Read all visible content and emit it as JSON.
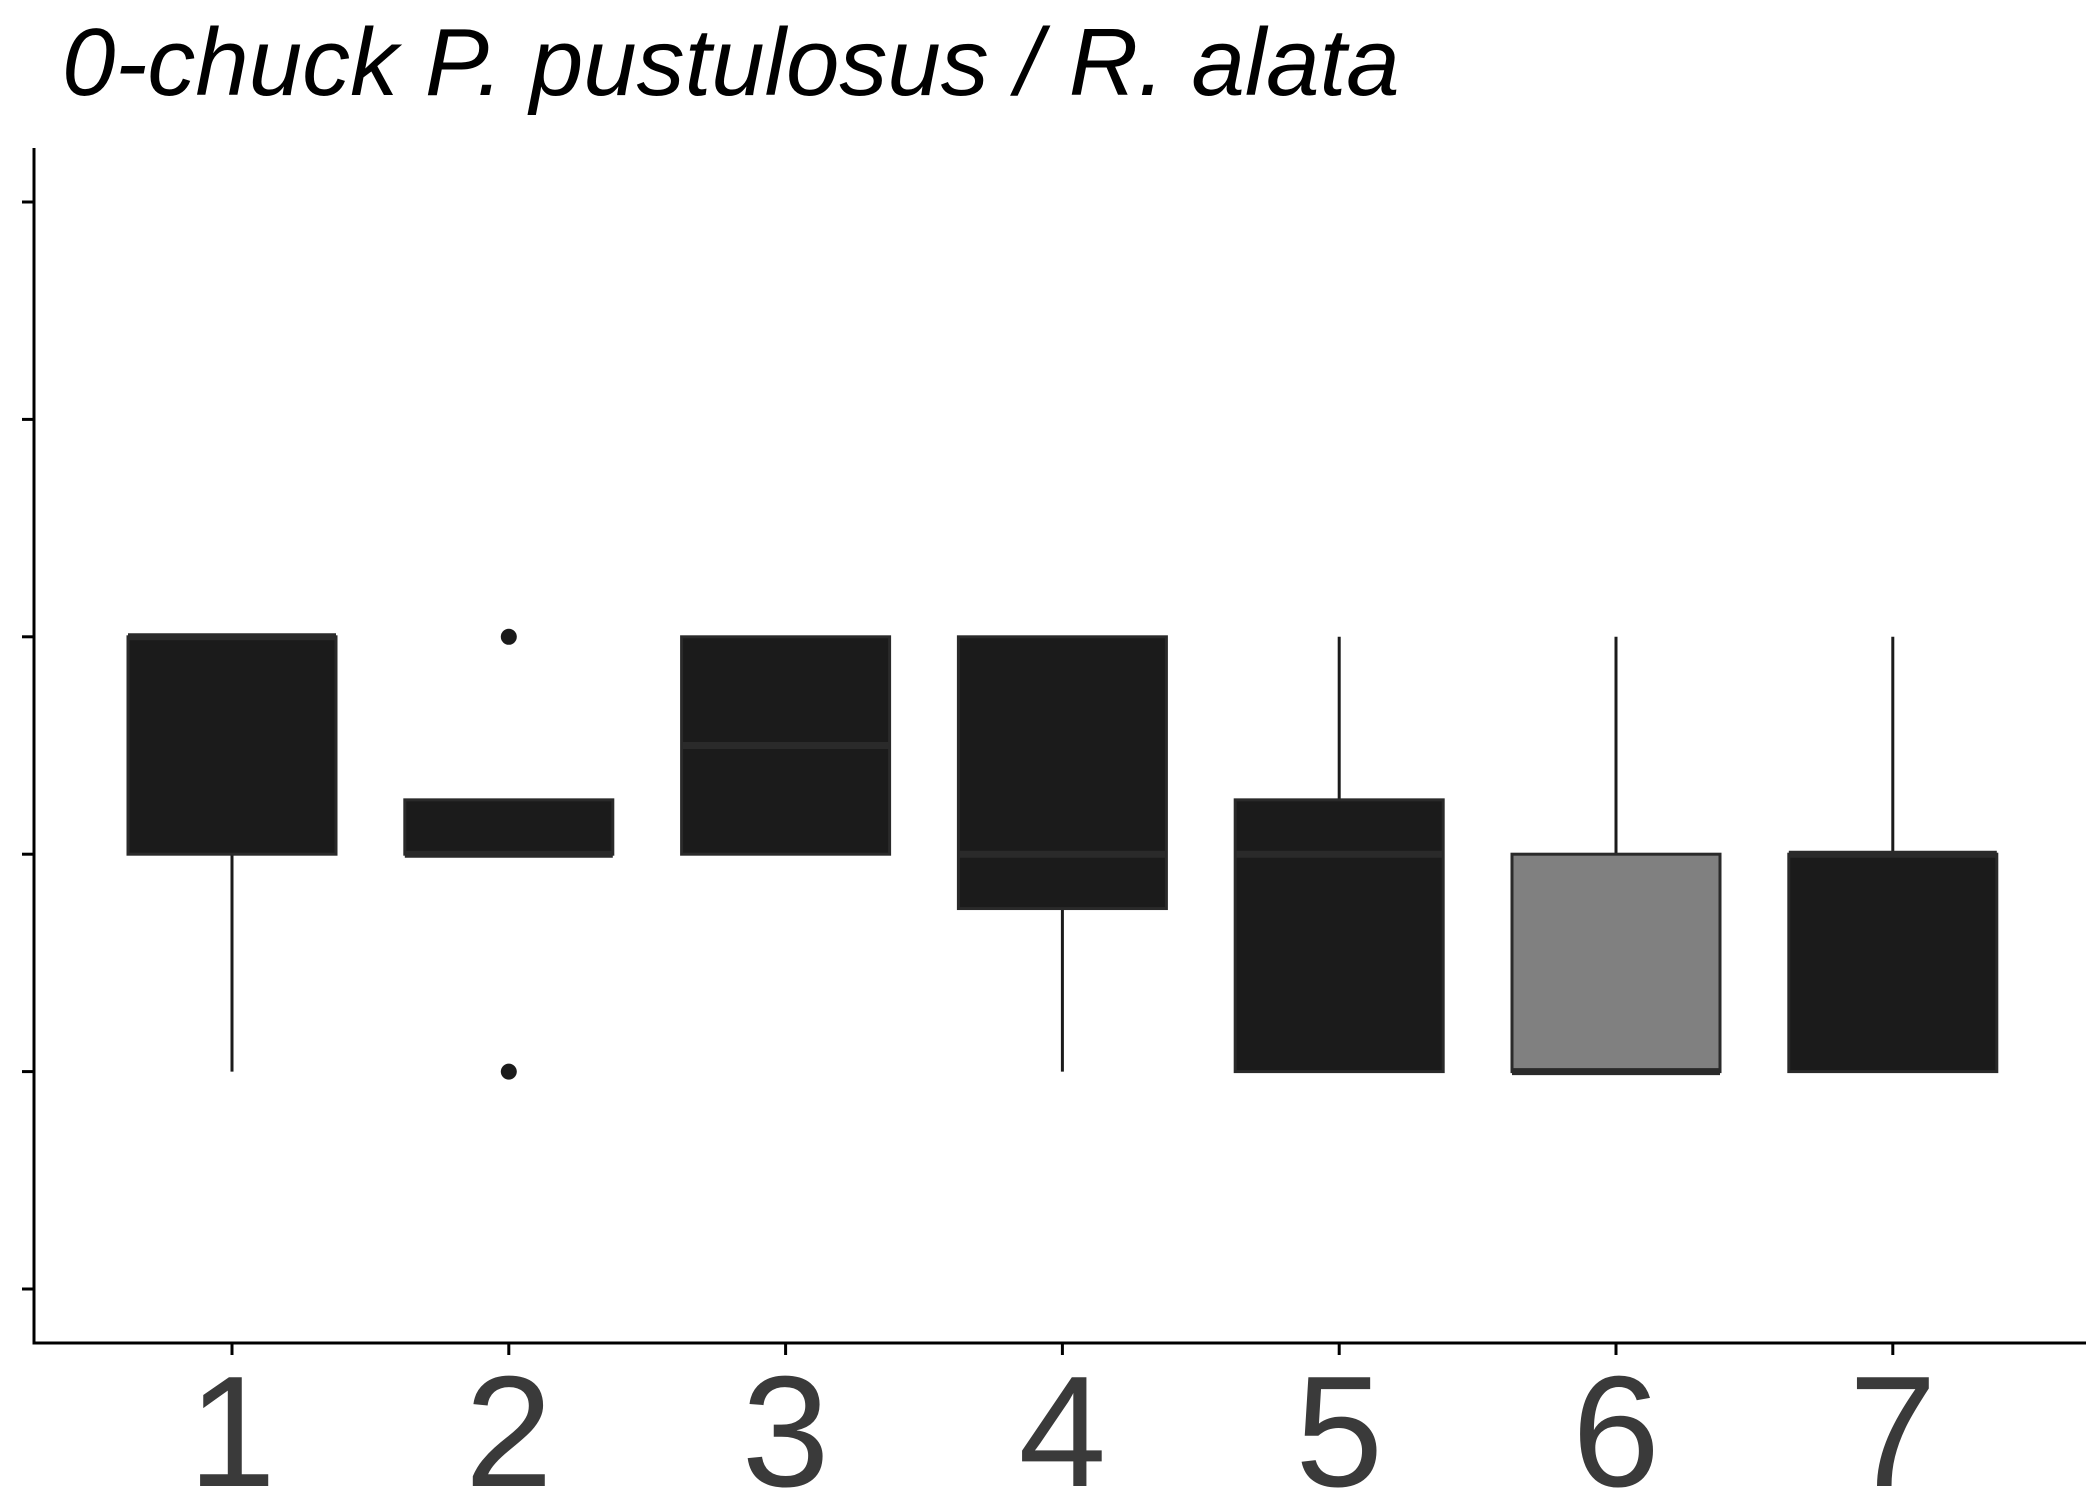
{
  "chart_data": {
    "type": "box",
    "title": "0-chuck P. pustulosus / R. alata",
    "xlabel": "",
    "ylabel": "",
    "categories": [
      "1",
      "2",
      "3",
      "4",
      "5",
      "6",
      "7"
    ],
    "ylim": [
      -0.25,
      5.25
    ],
    "y_ticks": [
      0,
      1,
      2,
      3,
      4,
      5
    ],
    "y_tick_labels_visible": false,
    "grid": false,
    "boxes": [
      {
        "category": "1",
        "whisker_low": 1,
        "q1": 2,
        "median": 3,
        "q3": 3,
        "whisker_high": 3,
        "outliers": [],
        "fill": "#1b1b1b"
      },
      {
        "category": "2",
        "whisker_low": 2,
        "q1": 2,
        "median": 2,
        "q3": 2.25,
        "whisker_high": 2.25,
        "outliers": [
          1,
          3
        ],
        "fill": "#1b1b1b"
      },
      {
        "category": "3",
        "whisker_low": 2,
        "q1": 2,
        "median": 2.5,
        "q3": 3,
        "whisker_high": 3,
        "outliers": [],
        "fill": "#1b1b1b"
      },
      {
        "category": "4",
        "whisker_low": 1,
        "q1": 1.75,
        "median": 2,
        "q3": 3,
        "whisker_high": 3,
        "outliers": [],
        "fill": "#1b1b1b"
      },
      {
        "category": "5",
        "whisker_low": 1,
        "q1": 1,
        "median": 2,
        "q3": 2.25,
        "whisker_high": 3,
        "outliers": [],
        "fill": "#1b1b1b"
      },
      {
        "category": "6",
        "whisker_low": 1,
        "q1": 1,
        "median": 1,
        "q3": 2,
        "whisker_high": 3,
        "outliers": [],
        "fill": "#808080"
      },
      {
        "category": "7",
        "whisker_low": 1,
        "q1": 1,
        "median": 2,
        "q3": 2,
        "whisker_high": 3,
        "outliers": [],
        "fill": "#1b1b1b"
      }
    ],
    "colors": {
      "box_dark": "#1b1b1b",
      "box_gray": "#808080",
      "line": "#1b1b1b",
      "axis": "#000000",
      "tick_label": "#3a3a3a"
    }
  }
}
